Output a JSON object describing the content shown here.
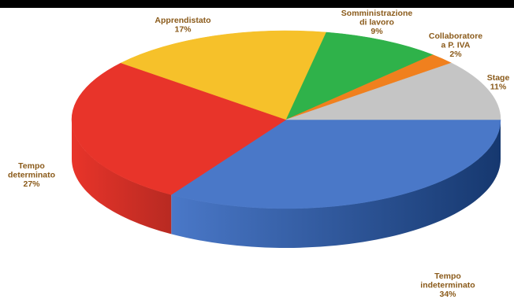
{
  "chart_data": {
    "type": "pie",
    "style": "3d",
    "title": "",
    "legend": "none",
    "slices": [
      {
        "label_lines": [
          "Tempo",
          "indeterminato",
          "34%"
        ],
        "value": 34,
        "color": "#4a78c8",
        "side_color": "#16386f"
      },
      {
        "label_lines": [
          "Tempo",
          "determinato",
          "27%"
        ],
        "value": 27,
        "color": "#e8342a",
        "side_color": "#b82a22"
      },
      {
        "label_lines": [
          "Apprendistato",
          "17%"
        ],
        "value": 17,
        "color": "#f6c12a",
        "side_color": "#d9a319"
      },
      {
        "label_lines": [
          "Somministrazione",
          "di lavoro",
          "9%"
        ],
        "value": 9,
        "color": "#2fb24a",
        "side_color": "#1f8a36"
      },
      {
        "label_lines": [
          "Collaboratore",
          "a P. IVA",
          "2%"
        ],
        "value": 2,
        "color": "#f0801e",
        "side_color": "#c46312"
      },
      {
        "label_lines": [
          "Stage",
          "11%"
        ],
        "value": 11,
        "color": "#c5c5c5",
        "side_color": "#8f8f8f"
      }
    ]
  }
}
